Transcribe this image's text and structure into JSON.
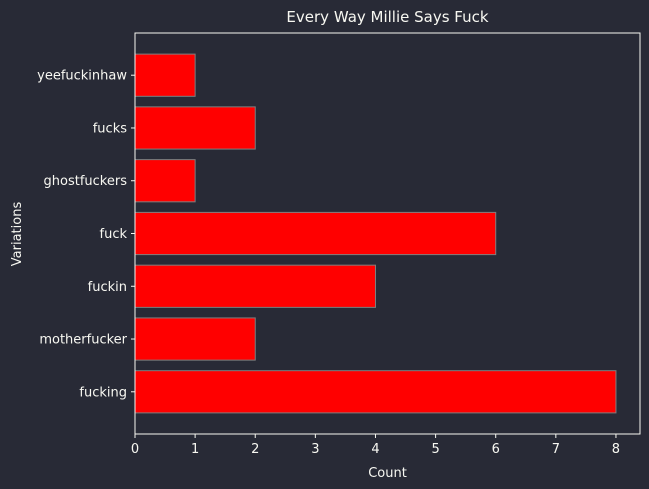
{
  "chart_data": {
    "type": "bar",
    "orientation": "horizontal",
    "title": "Every Way Millie Says Fuck",
    "xlabel": "Count",
    "ylabel": "Variations",
    "categories": [
      "fucking",
      "motherfucker",
      "fuckin",
      "fuck",
      "ghostfuckers",
      "fucks",
      "yeefuckinhaw"
    ],
    "values": [
      8,
      2,
      4,
      6,
      1,
      2,
      1
    ],
    "xlim": [
      0,
      8.4
    ],
    "xticks": [
      0,
      1,
      2,
      3,
      4,
      5,
      6,
      7,
      8
    ],
    "grid": false,
    "legend": "none"
  },
  "colors": {
    "background": "#282a36",
    "bar_fill": "#ff0000",
    "bar_edge": "#7f7f7f",
    "axis": "#f8f8f2",
    "text": "#f8f8f2"
  }
}
